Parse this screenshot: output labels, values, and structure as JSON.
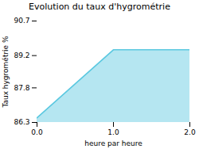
{
  "chart_data": {
    "type": "area",
    "title": "Evolution du taux d'hygrométrie",
    "xlabel": "heure par heure",
    "ylabel": "Taux hygrométrie %",
    "x": [
      0,
      1,
      2
    ],
    "values": [
      86.5,
      89.45,
      89.45
    ],
    "color": "#5bc8e0",
    "xlim": [
      0,
      2
    ],
    "xticks": [
      0,
      1,
      2
    ],
    "ylim": [
      86.3,
      90.7
    ],
    "yticks": [
      86.3,
      87.8,
      89.2,
      90.7
    ]
  }
}
